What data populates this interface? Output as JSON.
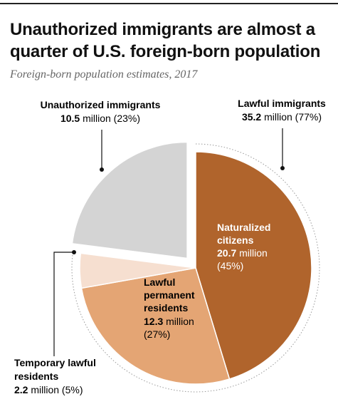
{
  "title": "Unauthorized immigrants are almost a quarter of U.S. foreign-born population",
  "subtitle": "Foreign-born population estimates, 2017",
  "chart_data": {
    "type": "pie",
    "title": "Unauthorized immigrants are almost a quarter of U.S. foreign-born population",
    "subtitle": "Foreign-born population estimates, 2017",
    "unit": "million",
    "slices": [
      {
        "label": "Naturalized citizens",
        "value": 20.7,
        "percent": 45,
        "color": "#b0642c"
      },
      {
        "label": "Lawful permanent residents",
        "value": 12.3,
        "percent": 27,
        "color": "#e4a574"
      },
      {
        "label": "Temporary lawful residents",
        "value": 2.2,
        "percent": 5,
        "color": "#f6dfd0"
      },
      {
        "label": "Unauthorized immigrants",
        "value": 10.5,
        "percent": 23,
        "color": "#d4d4d4"
      }
    ],
    "groups": [
      {
        "label": "Lawful immigrants",
        "value": 35.2,
        "percent": 77
      },
      {
        "label": "Unauthorized immigrants",
        "value": 10.5,
        "percent": 23
      }
    ],
    "annotations": {
      "naturalized": {
        "line1": "Naturalized",
        "line2": "citizens",
        "value": "20.7",
        "unit": " million",
        "pct": "(45%)"
      },
      "permanent": {
        "line1": "Lawful",
        "line2": "permanent",
        "line3": "residents",
        "value": "12.3",
        "unit": " million",
        "pct": "(27%)"
      },
      "temporary": {
        "line1": "Temporary lawful",
        "line2": "residents",
        "value": "2.2",
        "unit": " million (5%)"
      },
      "unauthorized": {
        "line1": "Unauthorized immigrants",
        "value": "10.5",
        "unit": " million (23%)"
      },
      "lawful": {
        "line1": "Lawful immigrants",
        "value": "35.2",
        "unit": " million (77%)"
      }
    }
  }
}
